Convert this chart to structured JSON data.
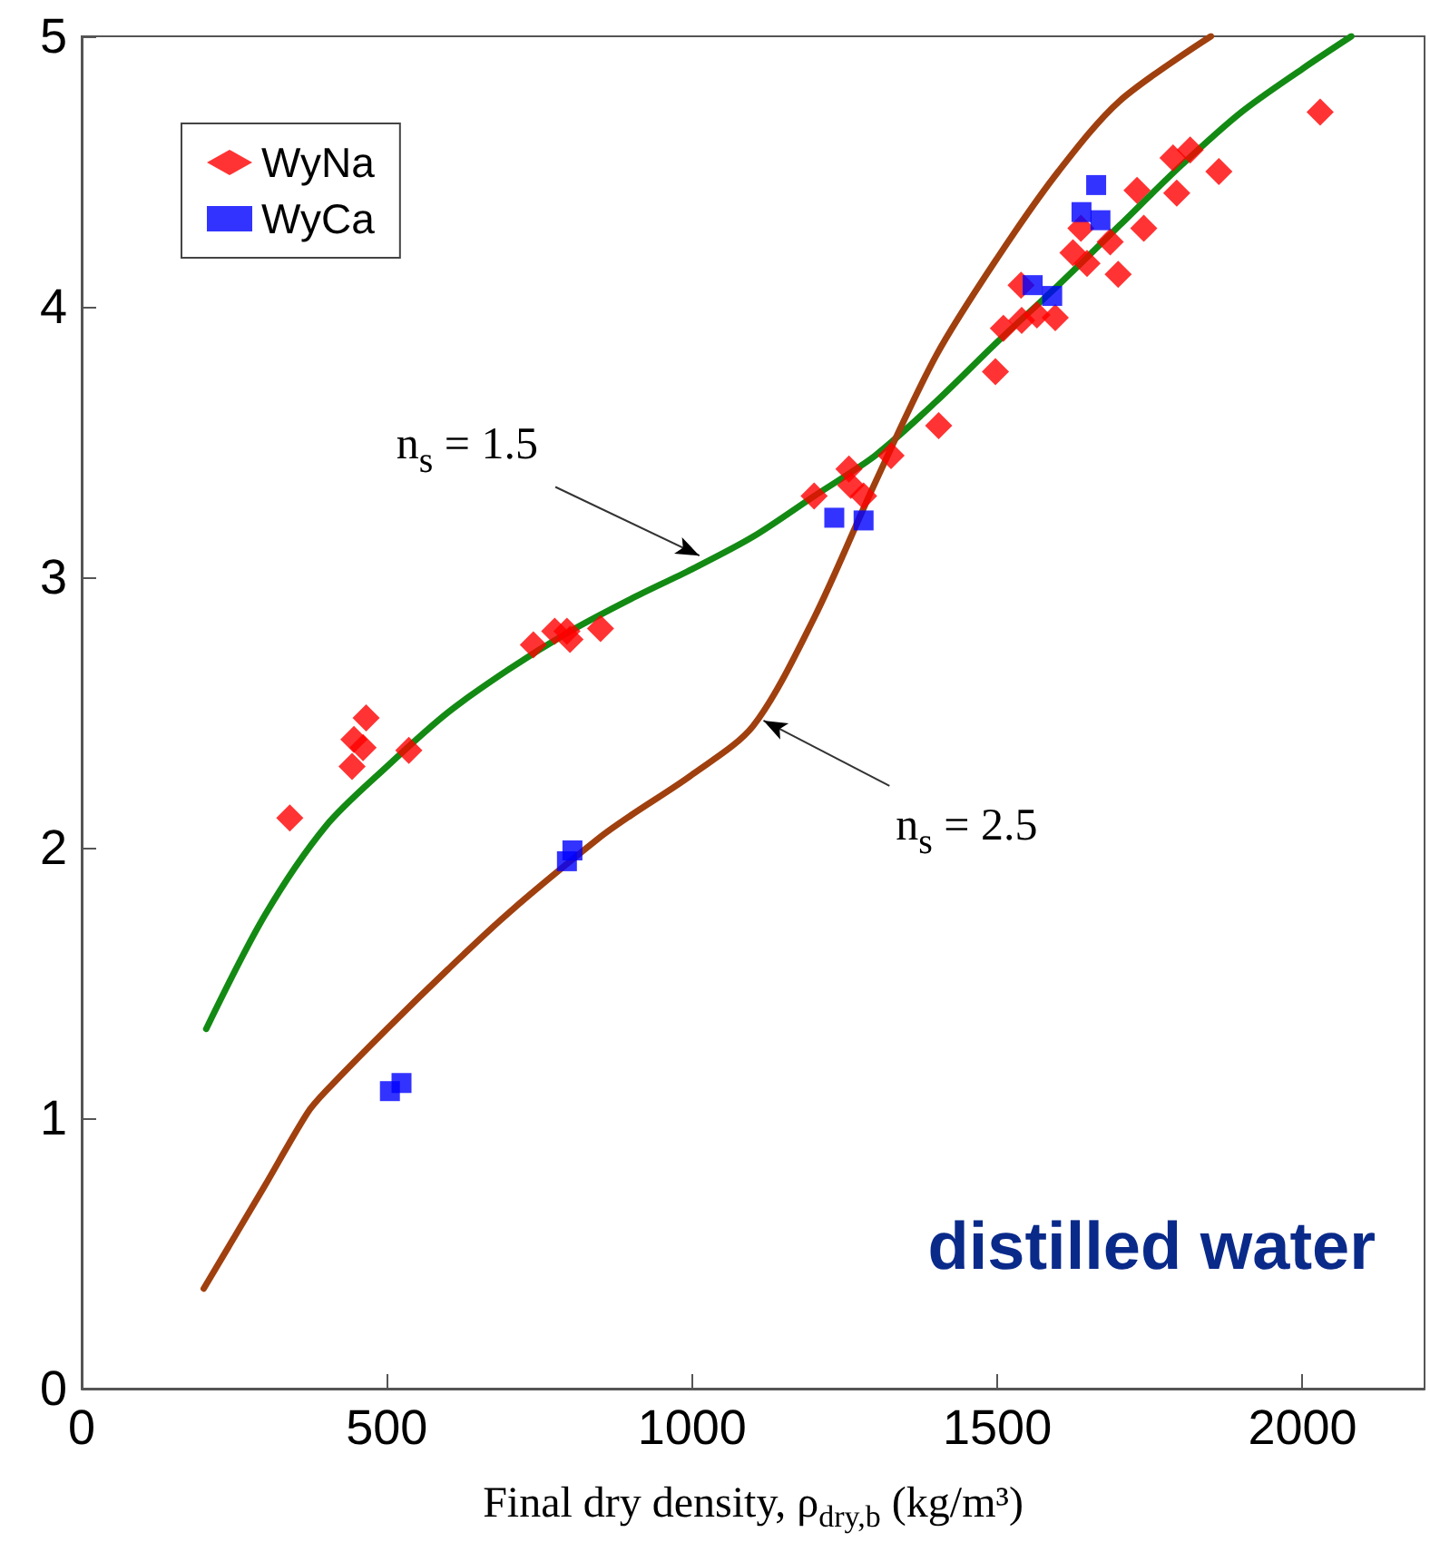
{
  "chart_data": {
    "type": "scatter",
    "xlabel": "Final dry density, ρ$_{dry,b}$ (kg/m³)",
    "xlim": [
      0,
      2200
    ],
    "xticks": [
      0,
      500,
      1000,
      1500,
      2000
    ],
    "ylim": [
      0,
      5
    ],
    "yticks": [
      0,
      1,
      2,
      3,
      4,
      5
    ],
    "grid": false,
    "legend": "top left",
    "series": [
      {
        "name": "WyNa",
        "color": "#ff0000",
        "marker": "diamond",
        "x": [
          341,
          443,
          446,
          461,
          466,
          536,
          740,
          775,
          795,
          800,
          850,
          1200,
          1257,
          1260,
          1281,
          1326,
          1404,
          1497,
          1510,
          1539,
          1540,
          1565,
          1595,
          1624,
          1637,
          1647,
          1685,
          1698,
          1729,
          1740,
          1788,
          1794,
          1816,
          1863,
          2029
        ],
        "values": [
          2.11,
          2.3,
          2.4,
          2.37,
          2.48,
          2.36,
          2.75,
          2.8,
          2.8,
          2.77,
          2.81,
          3.3,
          3.4,
          3.34,
          3.3,
          3.45,
          3.56,
          3.76,
          3.92,
          4.08,
          3.95,
          3.97,
          3.96,
          4.2,
          4.29,
          4.16,
          4.24,
          4.12,
          4.43,
          4.29,
          4.55,
          4.42,
          4.58,
          4.5,
          4.72
        ]
      },
      {
        "name": "WyCa",
        "color": "#0000ff",
        "marker": "square",
        "x": [
          505,
          524,
          795,
          804,
          1233,
          1281,
          1558,
          1590,
          1638,
          1662,
          1669
        ],
        "values": [
          1.1,
          1.13,
          1.95,
          1.99,
          3.22,
          3.21,
          4.08,
          4.04,
          4.35,
          4.45,
          4.32
        ]
      },
      {
        "type": "line",
        "color": "#138a13",
        "marker": "none",
        "line_style": "solid",
        "x": [
          204,
          300,
          400,
          500,
          600,
          700,
          800,
          900,
          1000,
          1100,
          1200,
          1300,
          1400,
          1500,
          1600,
          1700,
          1800,
          1900,
          2000,
          2080
        ],
        "values": [
          1.33,
          1.75,
          2.08,
          2.3,
          2.5,
          2.66,
          2.8,
          2.92,
          3.03,
          3.15,
          3.3,
          3.45,
          3.65,
          3.87,
          4.08,
          4.3,
          4.52,
          4.72,
          4.88,
          5.0
        ]
      },
      {
        "type": "line",
        "color": "#a0400f",
        "marker": "none",
        "line_style": "solid",
        "x": [
          200,
          300,
          370,
          400,
          500,
          600,
          700,
          850,
          900,
          1000,
          1100,
          1200,
          1300,
          1400,
          1500,
          1600,
          1700,
          1850
        ],
        "values": [
          0.37,
          0.75,
          1.02,
          1.1,
          1.33,
          1.55,
          1.76,
          2.04,
          2.12,
          2.27,
          2.45,
          2.85,
          3.35,
          3.82,
          4.18,
          4.5,
          4.76,
          5.0
        ]
      }
    ],
    "annotations": [
      {
        "text": "n$_{s}$ = 1.5",
        "x": 1012,
        "y": 3.08
      },
      {
        "text": "n$_{s}$ = 2.5",
        "x": 1117,
        "y": 2.47
      },
      "distilled water"
    ]
  }
}
